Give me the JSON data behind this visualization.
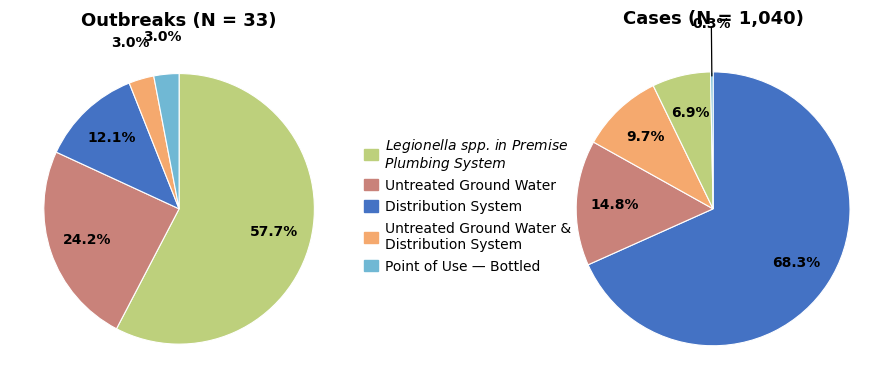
{
  "chart1_title": "Outbreaks (N = 33)",
  "chart2_title": "Cases (N = 1,040)",
  "labels": [
    "Legionella spp. in Premise\nPlumbing System",
    "Untreated Ground Water",
    "Distribution System",
    "Untreated Ground Water &\nDistribution System",
    "Point of Use — Bottled"
  ],
  "colors": [
    "#bdd07c",
    "#c9827a",
    "#4472c4",
    "#f5a96e",
    "#70b8d4"
  ],
  "ob_sizes": [
    57.6,
    24.2,
    12.1,
    3.0,
    3.0
  ],
  "ob_colors_idx": [
    0,
    1,
    2,
    3,
    4
  ],
  "ca_sizes": [
    68.3,
    14.8,
    9.7,
    6.9,
    0.3
  ],
  "ca_colors_idx": [
    2,
    1,
    3,
    0,
    4
  ],
  "label_fontsize": 10,
  "title_fontsize": 13,
  "legend_fontsize": 10,
  "background_color": "#ffffff"
}
